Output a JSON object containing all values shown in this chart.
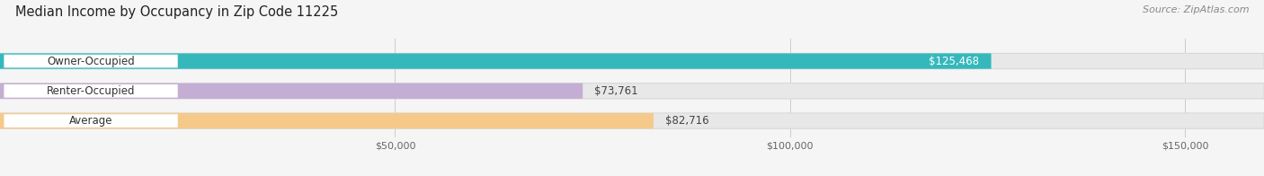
{
  "title": "Median Income by Occupancy in Zip Code 11225",
  "source": "Source: ZipAtlas.com",
  "categories": [
    "Owner-Occupied",
    "Renter-Occupied",
    "Average"
  ],
  "values": [
    125468,
    73761,
    82716
  ],
  "bar_colors": [
    "#35b8bc",
    "#c4aed4",
    "#f5c98a"
  ],
  "label_colors": [
    "#ffffff",
    "#555555",
    "#555555"
  ],
  "xlim_max": 160000,
  "xticks": [
    50000,
    100000,
    150000
  ],
  "xtick_labels": [
    "$50,000",
    "$100,000",
    "$150,000"
  ],
  "value_labels": [
    "$125,468",
    "$73,761",
    "$82,716"
  ],
  "bg_color": "#f5f5f5",
  "bar_bg_color": "#e8e8e8",
  "bar_bg_edge": "#d8d8d8",
  "title_fontsize": 10.5,
  "source_fontsize": 8,
  "cat_label_fontsize": 8.5,
  "value_fontsize": 8.5,
  "tick_fontsize": 8
}
